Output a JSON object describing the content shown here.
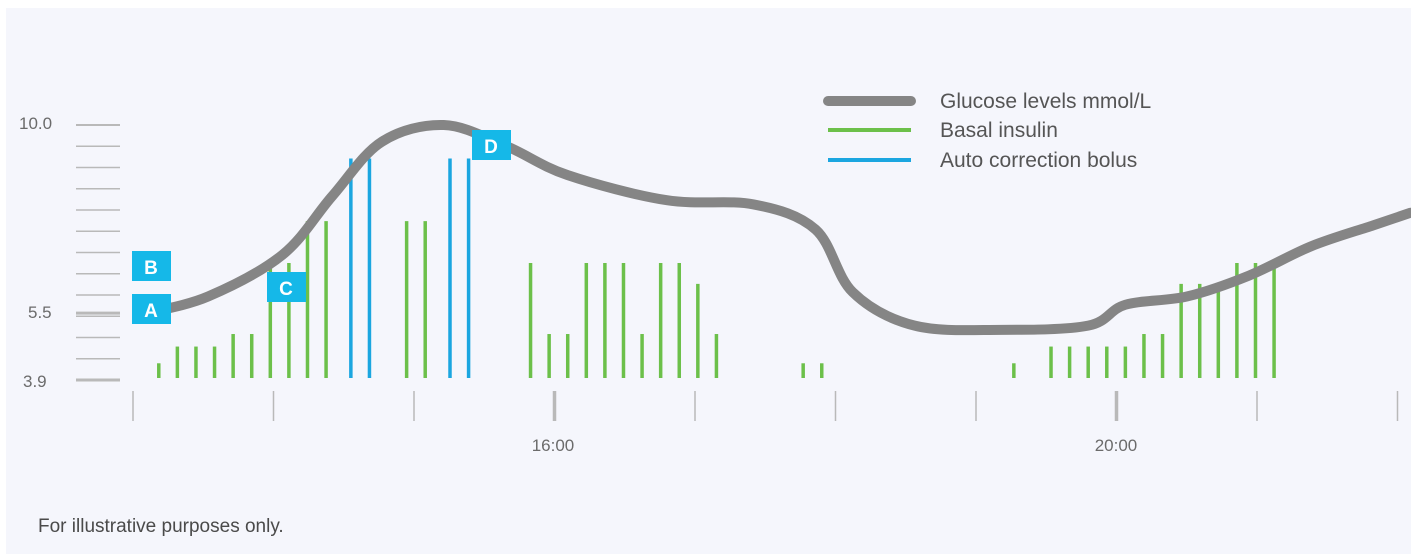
{
  "chart_data": {
    "type": "line",
    "y_tick_labels": [
      "10.0",
      "5.5",
      "3.9"
    ],
    "x_tick_labels": [
      "16:00",
      "20:00"
    ],
    "legend": [
      {
        "label": "Glucose levels mmol/L",
        "color": "#858585"
      },
      {
        "label": "Basal insulin",
        "color": "#6cc04a"
      },
      {
        "label": "Auto correction bolus",
        "color": "#1ba6e0"
      }
    ],
    "series": [
      {
        "name": "Glucose levels mmol/L",
        "color": "#858585",
        "points": [
          [
            12.1,
            5.5
          ],
          [
            12.6,
            5.9
          ],
          [
            13.2,
            6.9
          ],
          [
            13.6,
            8.3
          ],
          [
            14.0,
            9.6
          ],
          [
            14.5,
            10.0
          ],
          [
            15.0,
            9.5
          ],
          [
            15.5,
            8.8
          ],
          [
            16.3,
            8.2
          ],
          [
            17.0,
            8.1
          ],
          [
            17.5,
            7.5
          ],
          [
            17.8,
            6.0
          ],
          [
            18.3,
            5.2
          ],
          [
            19.0,
            5.1
          ],
          [
            19.7,
            5.2
          ],
          [
            20.0,
            5.7
          ],
          [
            20.5,
            5.9
          ],
          [
            21.0,
            6.4
          ],
          [
            21.5,
            7.1
          ],
          [
            22.0,
            7.6
          ],
          [
            22.3,
            7.9
          ]
        ]
      },
      {
        "name": "Basal insulin",
        "color": "#6cc04a",
        "bars": [
          [
            12.2,
            4.3
          ],
          [
            12.35,
            4.7
          ],
          [
            12.5,
            4.7
          ],
          [
            12.65,
            4.7
          ],
          [
            12.8,
            5.0
          ],
          [
            12.95,
            5.0
          ],
          [
            13.1,
            6.7
          ],
          [
            13.25,
            6.7
          ],
          [
            13.4,
            7.7
          ],
          [
            13.55,
            7.7
          ],
          [
            14.2,
            7.7
          ],
          [
            14.35,
            7.7
          ],
          [
            15.2,
            6.7
          ],
          [
            15.35,
            5.0
          ],
          [
            15.5,
            5.0
          ],
          [
            15.65,
            6.7
          ],
          [
            15.8,
            6.7
          ],
          [
            15.95,
            6.7
          ],
          [
            16.1,
            5.0
          ],
          [
            16.25,
            6.7
          ],
          [
            16.4,
            6.7
          ],
          [
            16.55,
            6.2
          ],
          [
            16.7,
            5.0
          ],
          [
            17.4,
            4.3
          ],
          [
            17.55,
            4.3
          ],
          [
            19.1,
            4.3
          ],
          [
            19.4,
            4.7
          ],
          [
            19.55,
            4.7
          ],
          [
            19.7,
            4.7
          ],
          [
            19.85,
            4.7
          ],
          [
            20.0,
            4.7
          ],
          [
            20.15,
            5.0
          ],
          [
            20.3,
            5.0
          ],
          [
            20.45,
            6.2
          ],
          [
            20.6,
            6.2
          ],
          [
            20.75,
            6.2
          ],
          [
            20.9,
            6.7
          ],
          [
            21.05,
            6.7
          ],
          [
            21.2,
            6.7
          ]
        ]
      },
      {
        "name": "Auto correction bolus",
        "color": "#1ba6e0",
        "bars": [
          [
            13.75,
            9.2
          ],
          [
            13.9,
            9.2
          ],
          [
            14.55,
            9.2
          ],
          [
            14.7,
            9.2
          ]
        ]
      }
    ],
    "annotations": [
      "A",
      "B",
      "C",
      "D"
    ],
    "ylim": [
      3.9,
      10.0
    ],
    "xlim": [
      12.0,
      22.2
    ],
    "grid": false
  },
  "footnote": "For illustrative purposes only."
}
